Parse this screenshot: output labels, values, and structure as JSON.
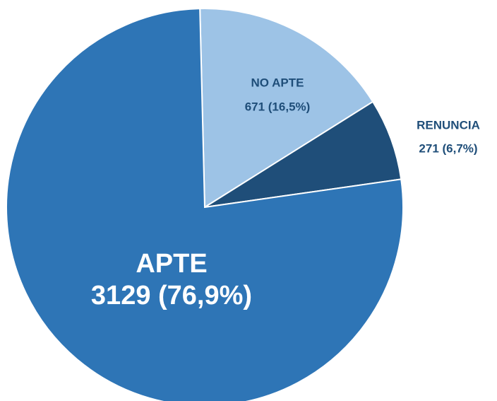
{
  "chart_data": {
    "type": "pie",
    "categories": [
      "NO APTE",
      "RENUNCIA",
      "APTE"
    ],
    "values": [
      671,
      271,
      3129
    ],
    "value_labels": [
      "671 (16,5%)",
      "271 (6,7%)",
      "3129 (76,9%)"
    ],
    "colors": [
      "#9dc3e6",
      "#1f4e79",
      "#2e75b6"
    ]
  }
}
